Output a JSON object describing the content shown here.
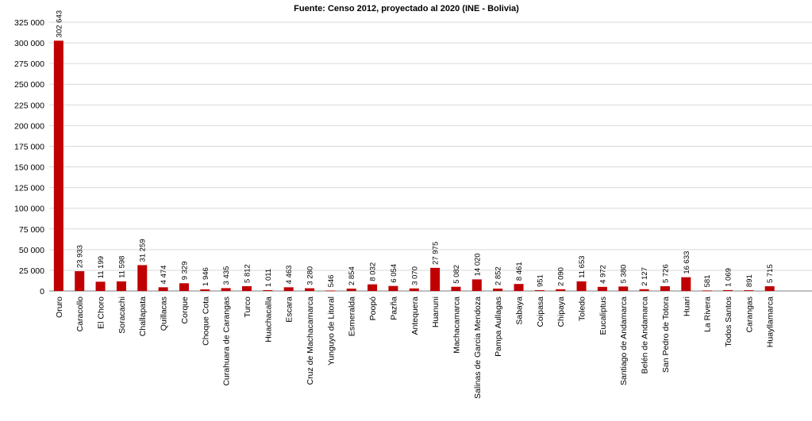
{
  "chart_data": {
    "type": "bar",
    "title": "Fuente: Censo 2012, proyectado al 2020 (INE - Bolivia)",
    "xlabel": "",
    "ylabel": "",
    "ylim": [
      0,
      325000
    ],
    "yticks": [
      0,
      25000,
      50000,
      75000,
      100000,
      125000,
      150000,
      175000,
      200000,
      225000,
      250000,
      275000,
      300000,
      325000
    ],
    "ytick_labels": [
      "0",
      "25 000",
      "50 000",
      "75 000",
      "100 000",
      "125 000",
      "150 000",
      "175 000",
      "200 000",
      "225 000",
      "250 000",
      "275 000",
      "300 000",
      "325 000"
    ],
    "grid": true,
    "bar_color": "#c00000",
    "categories": [
      "Oruro",
      "Caracollo",
      "El Choro",
      "Soracachi",
      "Challapata",
      "Quillacas",
      "Corque",
      "Choque Cota",
      "Curahuara de Carangas",
      "Turco",
      "Huachacalla",
      "Escara",
      "Cruz de Machacamarca",
      "Yunguyo de Litoral",
      "Esmeralda",
      "Poopó",
      "Pazña",
      "Antequera",
      "Huanuni",
      "Machacamarca",
      "Salinas de Garcia Mendoza",
      "Pampa Aullagas",
      "Sabaya",
      "Coipasa",
      "Chipaya",
      "Toledo",
      "Eucaliptus",
      "Santiago de Andamarca",
      "Belén de Andamarca",
      "San Pedro de Totora",
      "Huari",
      "La Rivera",
      "Todos Santos",
      "Carangas",
      "Huayllamarca"
    ],
    "values": [
      302643,
      23933,
      11199,
      11598,
      31259,
      4474,
      9329,
      1946,
      3435,
      5812,
      1011,
      4463,
      3280,
      546,
      2854,
      8032,
      6054,
      3070,
      27975,
      5082,
      14020,
      2852,
      8461,
      951,
      2090,
      11653,
      4972,
      5380,
      2127,
      5726,
      16633,
      581,
      1069,
      891,
      5715
    ],
    "value_labels": [
      "302 643",
      "23 933",
      "11 199",
      "11 598",
      "31 259",
      "4 474",
      "9 329",
      "1 946",
      "3 435",
      "5 812",
      "1 011",
      "4 463",
      "3 280",
      "546",
      "2 854",
      "8 032",
      "6 054",
      "3 070",
      "27 975",
      "5 082",
      "14 020",
      "2 852",
      "8 461",
      "951",
      "2 090",
      "11 653",
      "4 972",
      "5 380",
      "2 127",
      "5 726",
      "16 633",
      "581",
      "1 069",
      "891",
      "5 715"
    ]
  }
}
